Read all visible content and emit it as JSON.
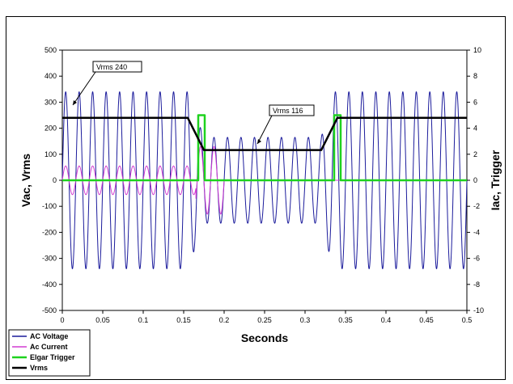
{
  "chart_data": {
    "type": "line",
    "xlabel": "Seconds",
    "ylabel": "Vac, Vrms",
    "y2label": "Iac, Trigger",
    "xlim": [
      0,
      0.5
    ],
    "ylim": [
      -500,
      500
    ],
    "y2lim": [
      -10,
      10
    ],
    "grid": false,
    "legend_position": "bottom-left",
    "x_ticks": [
      "0",
      "0.05",
      "0.1",
      "0.15",
      "0.2",
      "0.25",
      "0.3",
      "0.35",
      "0.4",
      "0.45",
      "0.5"
    ],
    "y_ticks": [
      "500",
      "400",
      "300",
      "200",
      "100",
      "0",
      "-100",
      "-200",
      "-300",
      "-400",
      "-500"
    ],
    "y2_ticks": [
      "10",
      "8",
      "6",
      "4",
      "2",
      "0",
      "-2",
      "-4",
      "-6",
      "-8",
      "-10"
    ],
    "series": [
      {
        "name": "AC Voltage",
        "axis": "left",
        "color": "#1c1c9c",
        "waveform": {
          "frequency_hz": 60,
          "segments": [
            {
              "t_start": 0,
              "t_end": 0.155,
              "amplitude": 340
            },
            {
              "t_start": 0.155,
              "t_end": 0.175,
              "amplitude_from": 340,
              "amplitude_to": 165
            },
            {
              "t_start": 0.175,
              "t_end": 0.32,
              "amplitude": 165
            },
            {
              "t_start": 0.32,
              "t_end": 0.335,
              "amplitude_from": 165,
              "amplitude_to": 340
            },
            {
              "t_start": 0.335,
              "t_end": 0.5,
              "amplitude": 340
            }
          ]
        }
      },
      {
        "name": "Ac Current",
        "axis": "right",
        "color": "#d23cd2",
        "waveform": {
          "frequency_hz": 60,
          "segments": [
            {
              "t_start": 0,
              "t_end": 0.165,
              "amplitude": 1.1
            },
            {
              "t_start": 0.165,
              "t_end": 0.2,
              "amplitude": 2.6
            },
            {
              "t_start": 0.2,
              "t_end": 0.5,
              "amplitude": 0
            }
          ]
        }
      },
      {
        "name": "Elgar Trigger",
        "axis": "right",
        "color": "#1ed21e",
        "x": [
          0,
          0.168,
          0.168,
          0.176,
          0.176,
          0.336,
          0.336,
          0.344,
          0.344,
          0.5
        ],
        "y": [
          0,
          0,
          5,
          5,
          0,
          0,
          5,
          5,
          0,
          0
        ]
      },
      {
        "name": "Vrms",
        "axis": "left",
        "color": "#000000",
        "x": [
          0,
          0.155,
          0.175,
          0.32,
          0.34,
          0.5
        ],
        "y": [
          240,
          240,
          116,
          116,
          240,
          240
        ]
      }
    ],
    "annotations": [
      {
        "text": "Vrms  240",
        "x": 0.012,
        "y": 300
      },
      {
        "text": "Vrms 116",
        "x": 0.24,
        "y": 150
      }
    ]
  }
}
